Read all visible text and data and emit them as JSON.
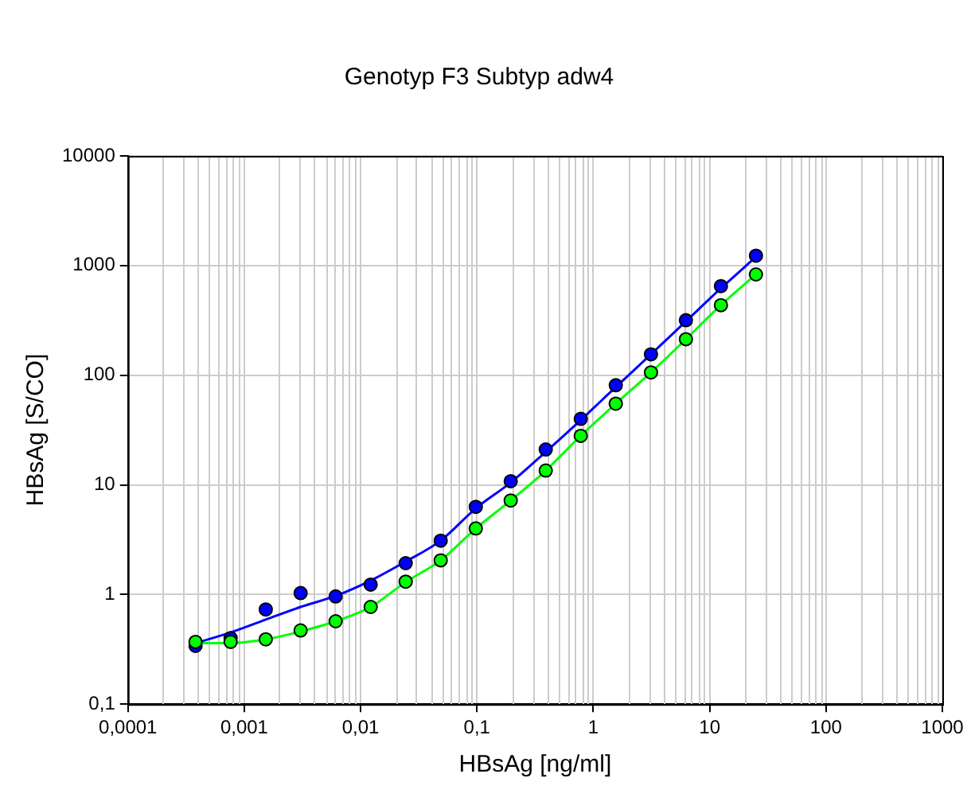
{
  "chart_data": {
    "type": "scatter",
    "title": "Genotyp F3 Subtyp adw4",
    "xlabel": "HBsAg [ng/ml]",
    "ylabel": "HBsAg [S/CO]",
    "log": "xy",
    "grid": true,
    "legend": false,
    "marker": "circle",
    "x": [
      0.000381,
      0.000763,
      0.00153,
      0.00305,
      0.0061,
      0.0122,
      0.0244,
      0.0488,
      0.0977,
      0.195,
      0.39,
      0.78,
      1.56,
      3.13,
      6.25,
      12.5,
      25
    ],
    "xlim": [
      0.0001,
      1000
    ],
    "xticks": [
      {
        "value": 0.0001,
        "label": "0,0001"
      },
      {
        "value": 0.001,
        "label": "0,001"
      },
      {
        "value": 0.01,
        "label": "0,01"
      },
      {
        "value": 0.1,
        "label": "0,1"
      },
      1,
      10,
      100,
      1000
    ],
    "ylim": [
      0.1,
      10000
    ],
    "yticks": [
      {
        "value": 0.1,
        "label": "0,1"
      },
      1,
      10,
      100,
      1000,
      10000
    ],
    "series": [
      {
        "type": "line",
        "marker": "none",
        "color": "#0000ff",
        "values": [
          0.36,
          0.45,
          0.59,
          0.77,
          0.97,
          1.34,
          2.0,
          3.1,
          6.1,
          10.5,
          20,
          39,
          78,
          155,
          310,
          620,
          1200
        ]
      },
      {
        "type": "line",
        "marker": "none",
        "color": "#00ff00",
        "values": [
          0.36,
          0.36,
          0.39,
          0.46,
          0.57,
          0.77,
          1.3,
          2.05,
          4.0,
          7.2,
          13.5,
          28,
          55,
          106,
          213,
          435,
          830
        ]
      },
      {
        "color": "#0000ff",
        "values": [
          0.34,
          0.4,
          0.73,
          1.03,
          0.96,
          1.23,
          1.93,
          3.1,
          6.3,
          10.8,
          21,
          40,
          81,
          155,
          317,
          650,
          1230
        ]
      },
      {
        "color": "#00ff00",
        "values": [
          0.37,
          0.37,
          0.39,
          0.47,
          0.57,
          0.77,
          1.31,
          2.05,
          4.0,
          7.2,
          13.5,
          28,
          55,
          106,
          213,
          435,
          830
        ]
      }
    ]
  }
}
